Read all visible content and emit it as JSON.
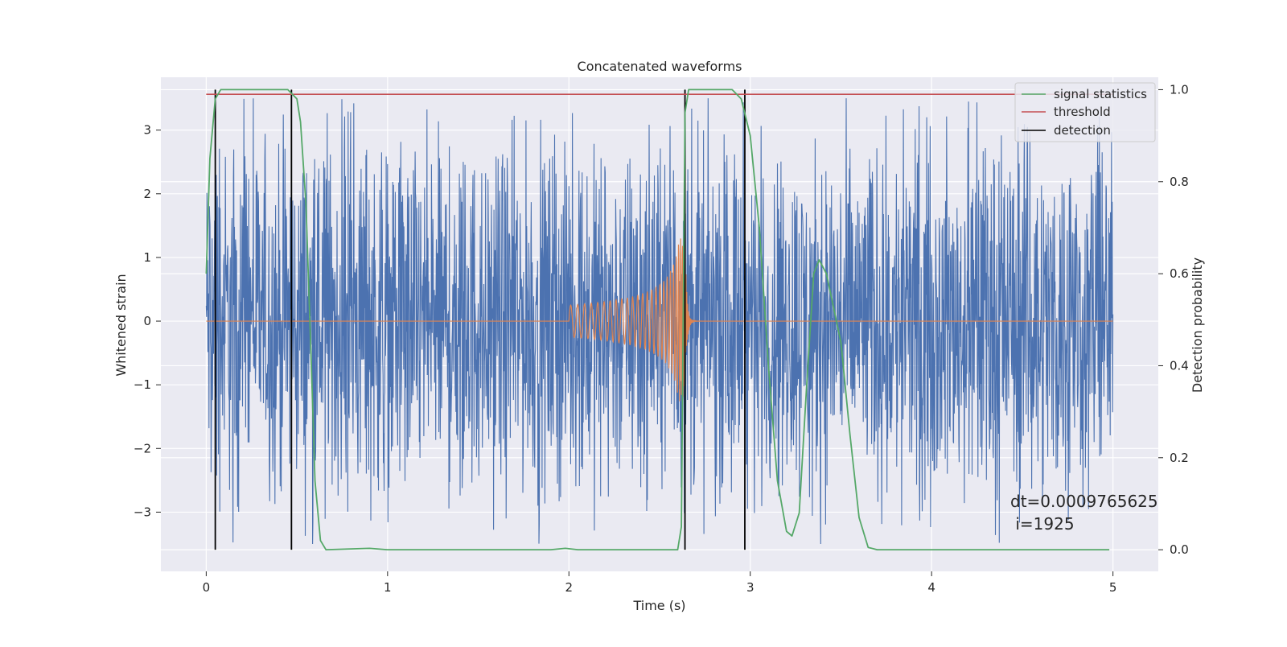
{
  "chart_data": {
    "type": "line",
    "title": "Concatenated waveforms",
    "xlabel": "Time (s)",
    "ylabel": "Whitened strain",
    "ylabel_right": "Detection probability",
    "xlim": [
      -0.25,
      5.25
    ],
    "ylim": [
      -3.93,
      3.83
    ],
    "ylim_right": [
      -0.047,
      1.027
    ],
    "grid": true,
    "legend_position": "top-right",
    "xticks": [
      "0",
      "1",
      "2",
      "3",
      "4",
      "5"
    ],
    "xtick_values": [
      0,
      1,
      2,
      3,
      4,
      5
    ],
    "yticks": [
      "−3",
      "−2",
      "−1",
      "0",
      "1",
      "2",
      "3"
    ],
    "ytick_values": [
      -3,
      -2,
      -1,
      0,
      1,
      2,
      3
    ],
    "yticks_right": [
      "0.0",
      "0.2",
      "0.4",
      "0.6",
      "0.8",
      "1.0"
    ],
    "ytick_values_right": [
      0,
      0.2,
      0.4,
      0.6,
      0.8,
      1.0
    ],
    "series": [
      {
        "kind": "noise",
        "color": "#4c72b0",
        "x_range": [
          0,
          5
        ],
        "typical_amplitude": 1.3,
        "peak_amplitude": 3.5
      },
      {
        "kind": "chirp",
        "color": "#dd8452",
        "x_start": 2.0,
        "x_merger": 2.64,
        "amplitude_start": 0.25,
        "amplitude_peak": 1.3
      },
      {
        "name": "signal statistics",
        "axis": "right",
        "color": "#55a868",
        "points": [
          [
            0,
            0.6
          ],
          [
            0.02,
            0.85
          ],
          [
            0.05,
            0.98
          ],
          [
            0.08,
            1.0
          ],
          [
            0.45,
            1.0
          ],
          [
            0.5,
            0.98
          ],
          [
            0.52,
            0.93
          ],
          [
            0.55,
            0.75
          ],
          [
            0.58,
            0.4
          ],
          [
            0.6,
            0.15
          ],
          [
            0.63,
            0.02
          ],
          [
            0.66,
            0.0
          ],
          [
            0.9,
            0.003
          ],
          [
            1.0,
            0.0
          ],
          [
            1.9,
            0.0
          ],
          [
            1.98,
            0.003
          ],
          [
            2.05,
            0.0
          ],
          [
            2.6,
            0.0
          ],
          [
            2.62,
            0.05
          ],
          [
            2.63,
            0.5
          ],
          [
            2.64,
            0.95
          ],
          [
            2.66,
            1.0
          ],
          [
            2.9,
            1.0
          ],
          [
            2.95,
            0.98
          ],
          [
            3.0,
            0.9
          ],
          [
            3.05,
            0.7
          ],
          [
            3.1,
            0.4
          ],
          [
            3.15,
            0.15
          ],
          [
            3.2,
            0.04
          ],
          [
            3.23,
            0.03
          ],
          [
            3.27,
            0.08
          ],
          [
            3.31,
            0.35
          ],
          [
            3.35,
            0.6
          ],
          [
            3.38,
            0.63
          ],
          [
            3.42,
            0.6
          ],
          [
            3.5,
            0.45
          ],
          [
            3.55,
            0.25
          ],
          [
            3.6,
            0.07
          ],
          [
            3.65,
            0.005
          ],
          [
            3.7,
            0.0
          ],
          [
            4.98,
            0.0
          ]
        ]
      },
      {
        "name": "threshold",
        "axis": "right",
        "color": "#c44e52",
        "x": [
          0,
          5
        ],
        "y": [
          0.99,
          0.99
        ]
      },
      {
        "name": "detection",
        "axis": "right",
        "color": "#000000",
        "x_values": [
          0.05,
          0.47,
          2.64,
          2.97
        ],
        "y_range": [
          0,
          1.0
        ]
      }
    ],
    "annotations": {
      "line1": "dt=0.0009765625",
      "line2": " i=1925"
    }
  }
}
